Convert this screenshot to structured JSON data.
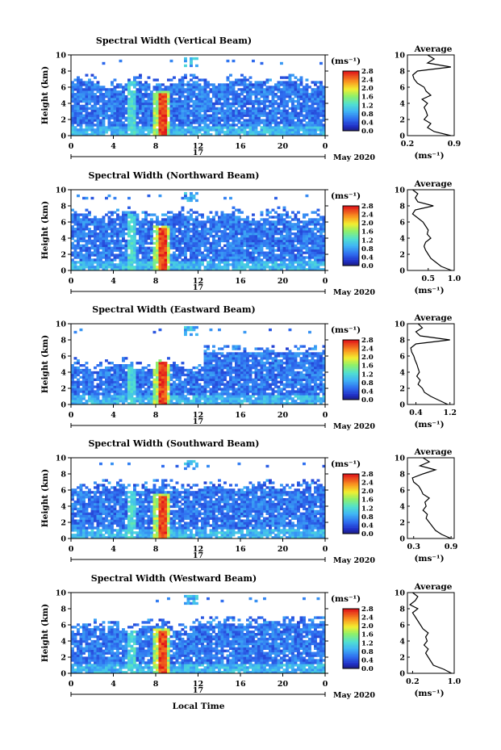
{
  "footer": {
    "xlabel": "Local Time"
  },
  "chart_data": [
    {
      "type": "heatmap",
      "title": "Spectral Width (Vertical Beam)",
      "ylabel": "Height (km)",
      "ylim": [
        0,
        10
      ],
      "yticks": [
        "0",
        "2",
        "4",
        "6",
        "8",
        "10"
      ],
      "xlim": [
        0,
        24
      ],
      "xticks": [
        "0",
        "4",
        "8",
        "12",
        "16",
        "20",
        "0"
      ],
      "date_marker": "17",
      "date_label": "May 2020",
      "colorbar": {
        "unit": "(ms⁻¹)",
        "ticks": [
          "0.0",
          "0.4",
          "0.8",
          "1.2",
          "1.6",
          "2.0",
          "2.4",
          "2.8"
        ],
        "range": [
          0,
          2.8
        ]
      },
      "average": {
        "title": "Average",
        "xlabel": "(ms⁻¹)",
        "xlim": [
          0.2,
          0.9
        ],
        "xticks": [
          "0.2",
          "0.9"
        ],
        "heights": [
          0,
          0.5,
          1,
          1.5,
          2,
          2.5,
          3,
          3.5,
          4,
          4.5,
          5,
          5.5,
          6,
          6.5,
          7,
          7.5,
          8,
          8.5,
          9,
          9.5,
          10
        ],
        "values": [
          0.85,
          0.6,
          0.5,
          0.55,
          0.45,
          0.5,
          0.48,
          0.45,
          0.5,
          0.42,
          0.55,
          0.48,
          0.45,
          0.35,
          0.3,
          0.28,
          0.35,
          0.85,
          0.5,
          0.6,
          0.5
        ]
      }
    },
    {
      "type": "heatmap",
      "title": "Spectral Width (Northward Beam)",
      "ylabel": "Height (km)",
      "ylim": [
        0,
        10
      ],
      "yticks": [
        "0",
        "2",
        "4",
        "6",
        "8",
        "10"
      ],
      "xlim": [
        0,
        24
      ],
      "xticks": [
        "0",
        "4",
        "8",
        "12",
        "16",
        "20",
        "0"
      ],
      "date_marker": "17",
      "date_label": "May 2020",
      "colorbar": {
        "unit": "(ms⁻¹)",
        "ticks": [
          "0.0",
          "0.4",
          "0.8",
          "1.2",
          "1.6",
          "2.0",
          "2.4",
          "2.8"
        ],
        "range": [
          0,
          2.8
        ]
      },
      "average": {
        "title": "Average",
        "xlabel": "(ms⁻¹)",
        "xlim": [
          0.1,
          1.0
        ],
        "xticks": [
          "0.5",
          "1.0"
        ],
        "heights": [
          0,
          0.5,
          1,
          1.5,
          2,
          2.5,
          3,
          3.5,
          4,
          4.5,
          5,
          5.5,
          6,
          6.5,
          7,
          7.5,
          8,
          8.5,
          9,
          9.5,
          10
        ],
        "values": [
          0.95,
          0.75,
          0.65,
          0.55,
          0.5,
          0.45,
          0.42,
          0.45,
          0.55,
          0.48,
          0.5,
          0.45,
          0.4,
          0.3,
          0.2,
          0.25,
          0.6,
          0.3,
          0.25,
          0.3,
          0.2
        ]
      }
    },
    {
      "type": "heatmap",
      "title": "Spectral Width (Eastward Beam)",
      "ylabel": "Height (km)",
      "ylim": [
        0,
        10
      ],
      "yticks": [
        "0",
        "2",
        "4",
        "6",
        "8",
        "10"
      ],
      "xlim": [
        0,
        24
      ],
      "xticks": [
        "0",
        "4",
        "8",
        "12",
        "16",
        "20",
        "0"
      ],
      "date_marker": "17",
      "date_label": "May 2020",
      "colorbar": {
        "unit": "(ms⁻¹)",
        "ticks": [
          "0.0",
          "0.4",
          "0.8",
          "1.2",
          "1.6",
          "2.0",
          "2.4",
          "2.8"
        ],
        "range": [
          0,
          2.8
        ]
      },
      "average": {
        "title": "Average",
        "xlabel": "(ms⁻¹)",
        "xlim": [
          0.2,
          1.3
        ],
        "xticks": [
          "0.4",
          "1.2"
        ],
        "heights": [
          0,
          0.5,
          1,
          1.5,
          2,
          2.5,
          3,
          3.5,
          4,
          4.5,
          5,
          5.5,
          6,
          6.5,
          7,
          7.5,
          8,
          8.5,
          9,
          9.5,
          10
        ],
        "values": [
          1.15,
          0.95,
          0.75,
          0.6,
          0.55,
          0.45,
          0.5,
          0.42,
          0.48,
          0.45,
          0.42,
          0.38,
          0.35,
          0.3,
          0.28,
          0.4,
          1.2,
          0.5,
          0.4,
          0.55,
          0.45
        ]
      }
    },
    {
      "type": "heatmap",
      "title": "Spectral Width (Southward Beam)",
      "ylabel": "Height (km)",
      "ylim": [
        0,
        10
      ],
      "yticks": [
        "0",
        "2",
        "4",
        "6",
        "8",
        "10"
      ],
      "xlim": [
        0,
        24
      ],
      "xticks": [
        "0",
        "4",
        "8",
        "12",
        "16",
        "20",
        "0"
      ],
      "date_marker": "17",
      "date_label": "May 2020",
      "colorbar": {
        "unit": "(ms⁻¹)",
        "ticks": [
          "0.0",
          "0.4",
          "0.8",
          "1.2",
          "1.6",
          "2.0",
          "2.4",
          "2.8"
        ],
        "range": [
          0,
          2.8
        ]
      },
      "average": {
        "title": "Average",
        "xlabel": "(ms⁻¹)",
        "xlim": [
          0.2,
          0.95
        ],
        "xticks": [
          "0.3",
          "0.9"
        ],
        "heights": [
          0,
          0.5,
          1,
          1.5,
          2,
          2.5,
          3,
          3.5,
          4,
          4.5,
          5,
          5.5,
          6,
          6.5,
          7,
          7.5,
          8,
          8.5,
          9,
          9.5,
          10
        ],
        "values": [
          0.9,
          0.75,
          0.65,
          0.6,
          0.55,
          0.5,
          0.52,
          0.45,
          0.5,
          0.48,
          0.55,
          0.45,
          0.42,
          0.38,
          0.3,
          0.28,
          0.45,
          0.65,
          0.4,
          0.55,
          0.45
        ]
      }
    },
    {
      "type": "heatmap",
      "title": "Spectral Width (Westward Beam)",
      "ylabel": "Height (km)",
      "ylim": [
        0,
        10
      ],
      "yticks": [
        "0",
        "2",
        "4",
        "6",
        "8",
        "10"
      ],
      "xlim": [
        0,
        24
      ],
      "xticks": [
        "0",
        "4",
        "8",
        "12",
        "16",
        "20",
        "0"
      ],
      "date_marker": "17",
      "date_label": "May 2020",
      "colorbar": {
        "unit": "(ms⁻¹)",
        "ticks": [
          "0.0",
          "0.4",
          "0.8",
          "1.2",
          "1.6",
          "2.0",
          "2.4",
          "2.8"
        ],
        "range": [
          0,
          2.8
        ]
      },
      "average": {
        "title": "Average",
        "xlabel": "(ms⁻¹)",
        "xlim": [
          0.1,
          1.0
        ],
        "xticks": [
          "0.2",
          "1.0"
        ],
        "heights": [
          0,
          0.5,
          1,
          1.5,
          2,
          2.5,
          3,
          3.5,
          4,
          4.5,
          5,
          5.5,
          6,
          6.5,
          7,
          7.5,
          8,
          8.5,
          9,
          9.5,
          10
        ],
        "values": [
          0.95,
          0.8,
          0.6,
          0.55,
          0.5,
          0.45,
          0.5,
          0.42,
          0.48,
          0.45,
          0.5,
          0.4,
          0.35,
          0.3,
          0.25,
          0.2,
          0.3,
          0.15,
          0.25,
          0.3,
          0.2
        ]
      }
    }
  ]
}
